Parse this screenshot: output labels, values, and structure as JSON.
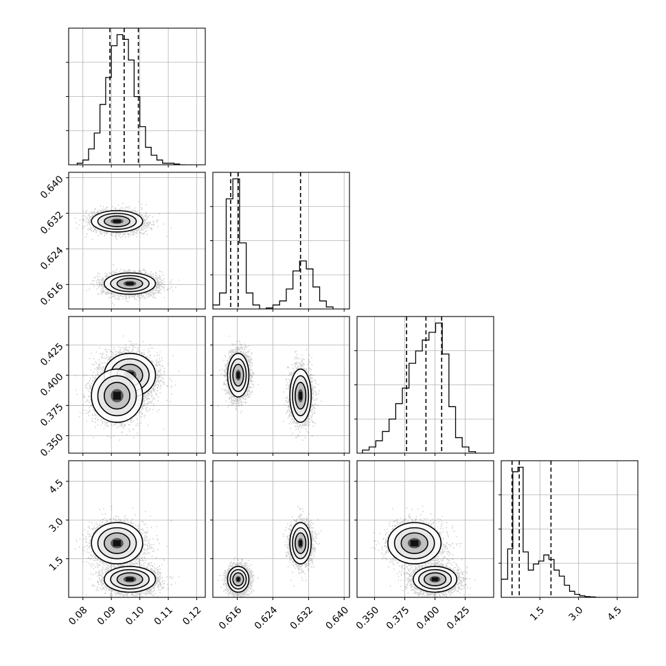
{
  "chart_data": {
    "type": "corner",
    "dimensions": 4,
    "parameters": [
      {
        "ticks": [
          0.08,
          0.09,
          0.1,
          0.11,
          0.12
        ],
        "tick_labels": [
          "0.08",
          "0.09",
          "0.10",
          "0.11",
          "0.12"
        ],
        "range": [
          0.075,
          0.123
        ],
        "quantiles": [
          0.0895,
          0.0945,
          0.0995
        ],
        "histogram": {
          "bin_edges": [
            0.078,
            0.08,
            0.082,
            0.084,
            0.086,
            0.088,
            0.09,
            0.092,
            0.094,
            0.096,
            0.098,
            0.1,
            0.102,
            0.104,
            0.106,
            0.108,
            0.11,
            0.112,
            0.114,
            0.116
          ],
          "counts": [
            1,
            3,
            10,
            20,
            38,
            55,
            75,
            82,
            79,
            66,
            43,
            24,
            11,
            6,
            3,
            1,
            1,
            0.5,
            0
          ]
        }
      },
      {
        "ticks": [
          0.616,
          0.624,
          0.632,
          0.64
        ],
        "tick_labels": [
          "0.616",
          "0.624",
          "0.632",
          "0.640"
        ],
        "range": [
          0.6105,
          0.6412
        ],
        "quantiles": [
          0.6145,
          0.6162,
          0.6302
        ],
        "histogram": {
          "bin_edges": [
            0.6105,
            0.612,
            0.6135,
            0.615,
            0.6165,
            0.618,
            0.6195,
            0.621,
            0.6225,
            0.624,
            0.6255,
            0.627,
            0.6285,
            0.63,
            0.6315,
            0.633,
            0.6345,
            0.636,
            0.6375
          ],
          "counts": [
            2,
            8,
            55,
            65,
            33,
            8,
            2,
            0,
            0.5,
            2,
            4,
            10,
            19,
            24,
            20,
            11,
            4,
            1
          ]
        }
      },
      {
        "ticks": [
          0.35,
          0.375,
          0.4,
          0.425
        ],
        "tick_labels": [
          "0.350",
          "0.375",
          "0.400",
          "0.425"
        ],
        "range": [
          0.3355,
          0.4485
        ],
        "quantiles": [
          0.3765,
          0.3925,
          0.4055
        ],
        "histogram": {
          "bin_edges": [
            0.34,
            0.3455,
            0.351,
            0.3565,
            0.362,
            0.3675,
            0.373,
            0.3785,
            0.384,
            0.3895,
            0.395,
            0.4005,
            0.406,
            0.4115,
            0.417,
            0.4225,
            0.428,
            0.4335
          ],
          "counts": [
            2,
            4,
            8,
            14,
            22,
            32,
            42,
            58,
            66,
            73,
            78,
            84,
            64,
            30,
            10,
            4,
            1
          ]
        }
      },
      {
        "ticks": [
          1.5,
          3.0,
          4.5
        ],
        "tick_labels": [
          "1.5",
          "3.0",
          "4.5"
        ],
        "range": [
          0.0,
          5.3
        ],
        "quantiles": [
          0.42,
          0.7,
          1.93
        ],
        "histogram": {
          "bin_edges": [
            0.0,
            0.25,
            0.45,
            0.65,
            0.85,
            1.05,
            1.25,
            1.45,
            1.65,
            1.85,
            2.05,
            2.25,
            2.45,
            2.65,
            2.85,
            3.05,
            3.25,
            3.45,
            3.65,
            3.85
          ],
          "counts": [
            12,
            32,
            83,
            86,
            30,
            18,
            22,
            24,
            28,
            25,
            18,
            14,
            8,
            4,
            2,
            1,
            0.5,
            0.3,
            0
          ]
        }
      }
    ],
    "modes": [
      {
        "center": [
          0.0965,
          0.6162,
          0.4,
          0.7
        ],
        "sd": [
          0.0045,
          0.0012,
          0.009,
          0.25
        ],
        "weight": 0.6
      },
      {
        "center": [
          0.092,
          0.6302,
          0.383,
          2.1
        ],
        "sd": [
          0.0045,
          0.0012,
          0.011,
          0.4
        ],
        "weight": 0.4
      }
    ]
  }
}
